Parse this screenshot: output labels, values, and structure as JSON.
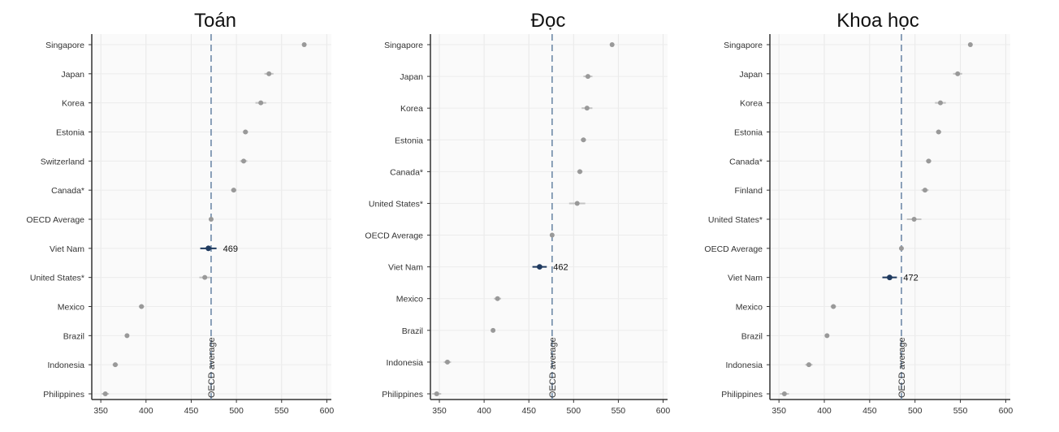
{
  "chart_data": [
    {
      "type": "scatter",
      "title": "Toán",
      "categories": [
        "Singapore",
        "Japan",
        "Korea",
        "Estonia",
        "Switzerland",
        "Canada*",
        "OECD Average",
        "Viet Nam",
        "United States*",
        "Mexico",
        "Brazil",
        "Indonesia",
        "Philippines"
      ],
      "values": [
        575,
        536,
        527,
        510,
        508,
        497,
        472,
        469,
        465,
        395,
        379,
        366,
        355
      ],
      "ci": [
        2,
        5,
        6,
        3,
        4,
        3,
        1,
        9,
        6,
        3,
        2,
        3,
        4
      ],
      "highlight": "Viet Nam",
      "highlight_label": "469",
      "xlim": [
        340,
        605
      ],
      "xticks": [
        350,
        400,
        450,
        500,
        550,
        600
      ],
      "reference": {
        "value": 472,
        "label": "OECD average"
      },
      "grid": true,
      "colors": {
        "point": "#999999",
        "highlight": "#1f3a5f",
        "reference": "#6f8aa8"
      }
    },
    {
      "type": "scatter",
      "title": "Đọc",
      "categories": [
        "Singapore",
        "Japan",
        "Korea",
        "Estonia",
        "Canada*",
        "United States*",
        "OECD Average",
        "Viet Nam",
        "Mexico",
        "Brazil",
        "Indonesia",
        "Philippines"
      ],
      "values": [
        543,
        516,
        515,
        511,
        507,
        504,
        476,
        462,
        415,
        410,
        359,
        347
      ],
      "ci": [
        2,
        5,
        6,
        3,
        3,
        9,
        1,
        8,
        4,
        2,
        4,
        5
      ],
      "highlight": "Viet Nam",
      "highlight_label": "462",
      "xlim": [
        340,
        605
      ],
      "xticks": [
        350,
        400,
        450,
        500,
        550,
        600
      ],
      "reference": {
        "value": 476,
        "label": "OECD average"
      },
      "grid": true,
      "colors": {
        "point": "#999999",
        "highlight": "#1f3a5f",
        "reference": "#6f8aa8"
      }
    },
    {
      "type": "scatter",
      "title": "Khoa học",
      "categories": [
        "Singapore",
        "Japan",
        "Korea",
        "Estonia",
        "Canada*",
        "Finland",
        "United States*",
        "OECD Average",
        "Viet Nam",
        "Mexico",
        "Brazil",
        "Indonesia",
        "Philippines"
      ],
      "values": [
        561,
        547,
        528,
        526,
        515,
        511,
        499,
        485,
        472,
        410,
        403,
        383,
        356
      ],
      "ci": [
        2,
        5,
        6,
        3,
        3,
        4,
        8,
        1,
        8,
        3,
        2,
        4,
        5
      ],
      "highlight": "Viet Nam",
      "highlight_label": "472",
      "xlim": [
        340,
        605
      ],
      "xticks": [
        350,
        400,
        450,
        500,
        550,
        600
      ],
      "reference": {
        "value": 485,
        "label": "OECD average"
      },
      "grid": true,
      "colors": {
        "point": "#999999",
        "highlight": "#1f3a5f",
        "reference": "#6f8aa8"
      }
    }
  ]
}
